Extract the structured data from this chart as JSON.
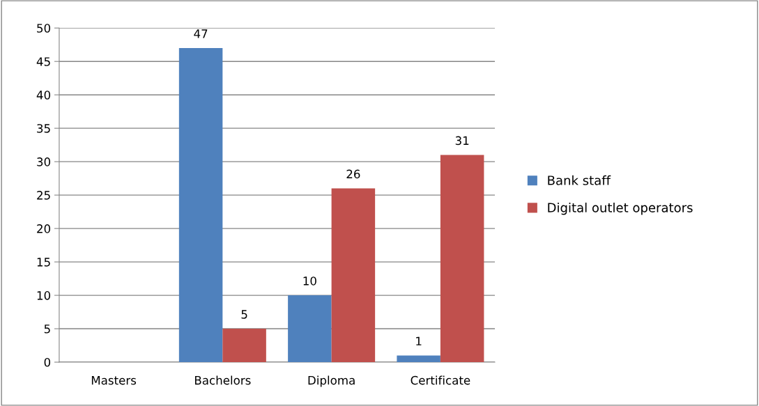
{
  "chart_data": {
    "type": "bar",
    "categories": [
      "Masters",
      "Bachelors",
      "Diploma",
      "Certificate"
    ],
    "series": [
      {
        "name": "Bank staff",
        "color": "#4f81bd",
        "values": [
          null,
          47,
          10,
          1
        ],
        "value_labels": [
          null,
          "47",
          "10",
          "1"
        ]
      },
      {
        "name": "Digital outlet operators",
        "color": "#c0504d",
        "values": [
          null,
          5,
          26,
          31
        ],
        "value_labels": [
          null,
          "5",
          "26",
          "31"
        ]
      }
    ],
    "ylim": [
      0,
      50
    ],
    "yticks": [
      0,
      5,
      10,
      15,
      20,
      25,
      30,
      35,
      40,
      45,
      50
    ],
    "grid": "y",
    "legend": "right"
  }
}
